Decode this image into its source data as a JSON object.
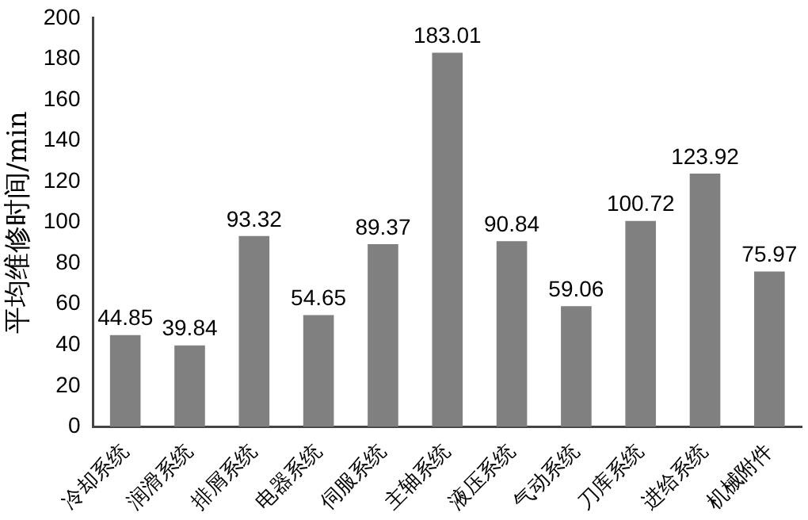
{
  "chart_data": {
    "type": "bar",
    "ylabel": "平均维修时间/min",
    "categories": [
      "冷却系统",
      "润滑系统",
      "排屑系统",
      "电器系统",
      "伺服系统",
      "主轴系统",
      "液压系统",
      "气动系统",
      "刀库系统",
      "进给系统",
      "机械附件"
    ],
    "values": [
      44.85,
      39.84,
      93.32,
      54.65,
      89.37,
      183.01,
      90.84,
      59.06,
      100.72,
      123.92,
      75.97
    ],
    "color": "#808080",
    "ylim": [
      0,
      200
    ],
    "yticks": [
      0,
      20,
      40,
      60,
      80,
      100,
      120,
      140,
      160,
      180,
      200
    ],
    "grid": false,
    "legend": false,
    "data_labels": true
  }
}
